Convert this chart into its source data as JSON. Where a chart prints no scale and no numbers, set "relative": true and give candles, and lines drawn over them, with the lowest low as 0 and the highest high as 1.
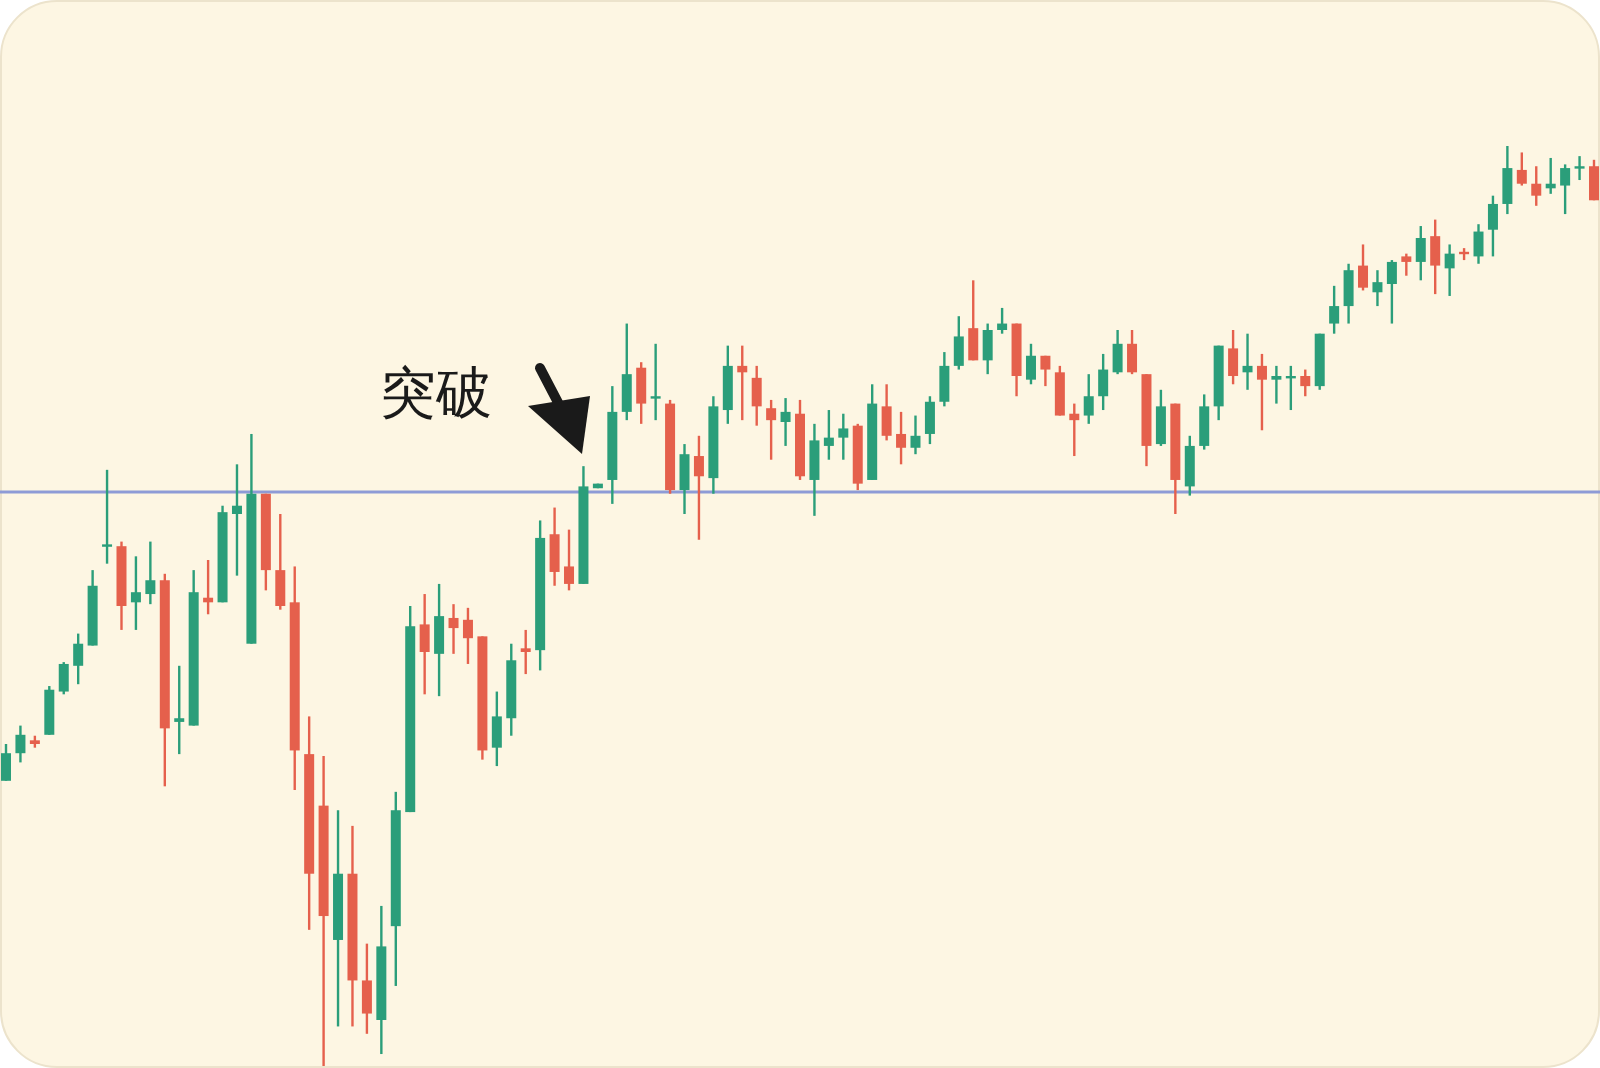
{
  "chart_data": {
    "type": "candlestick",
    "relative": true,
    "categories": [
      null,
      null,
      null,
      null,
      null,
      null,
      null,
      null,
      null,
      null,
      null,
      null,
      null,
      null,
      null,
      null,
      null,
      null,
      null,
      null,
      null,
      null,
      null,
      null,
      null,
      null,
      null,
      null,
      null,
      null,
      null,
      null,
      null,
      null,
      null,
      null,
      null,
      null,
      null,
      null,
      null,
      null,
      null,
      null,
      null,
      null,
      null,
      null,
      null,
      null,
      null,
      null,
      null,
      null,
      null,
      null,
      null,
      null,
      null,
      null,
      null,
      null,
      null,
      null,
      null,
      null,
      null,
      null,
      null,
      null,
      null,
      null,
      null,
      null,
      null,
      null,
      null,
      null,
      null,
      null,
      null,
      null,
      null,
      null,
      null,
      null,
      null,
      null,
      null,
      null,
      null,
      null,
      null,
      null,
      null,
      null,
      null,
      null,
      null,
      null,
      null,
      null,
      null,
      null,
      null,
      null,
      null,
      null,
      null,
      null,
      null
    ],
    "ohlc": [
      [
        0.31,
        0.35,
        0.31,
        0.34
      ],
      [
        0.34,
        0.37,
        0.33,
        0.36
      ],
      [
        0.354,
        0.359,
        0.346,
        0.35
      ],
      [
        0.36,
        0.413,
        0.36,
        0.409
      ],
      [
        0.407,
        0.439,
        0.404,
        0.437
      ],
      [
        0.435,
        0.47,
        0.415,
        0.459
      ],
      [
        0.457,
        0.539,
        0.457,
        0.522
      ],
      [
        0.565,
        0.648,
        0.546,
        0.567
      ],
      [
        0.565,
        0.57,
        0.474,
        0.5
      ],
      [
        0.504,
        0.554,
        0.474,
        0.515
      ],
      [
        0.513,
        0.57,
        0.502,
        0.528
      ],
      [
        0.528,
        0.535,
        0.304,
        0.367
      ],
      [
        0.374,
        0.435,
        0.339,
        0.378
      ],
      [
        0.37,
        0.539,
        0.37,
        0.515
      ],
      [
        0.509,
        0.55,
        0.491,
        0.504
      ],
      [
        0.504,
        0.609,
        0.504,
        0.602
      ],
      [
        0.6,
        0.654,
        0.533,
        0.609
      ],
      [
        0.459,
        0.687,
        0.459,
        0.622
      ],
      [
        0.622,
        0.622,
        0.517,
        0.539
      ],
      [
        0.539,
        0.6,
        0.496,
        0.5
      ],
      [
        0.504,
        0.543,
        0.3,
        0.343
      ],
      [
        0.339,
        0.38,
        0.148,
        0.209
      ],
      [
        0.283,
        0.337,
        0,
        0.163
      ],
      [
        0.137,
        0.278,
        0.043,
        0.209
      ],
      [
        0.209,
        0.261,
        0.043,
        0.093
      ],
      [
        0.093,
        0.133,
        0.035,
        0.057
      ],
      [
        0.05,
        0.174,
        0.013,
        0.13
      ],
      [
        0.152,
        0.298,
        0.087,
        0.278
      ],
      [
        0.276,
        0.5,
        0.276,
        0.478
      ],
      [
        0.48,
        0.513,
        0.404,
        0.45
      ],
      [
        0.448,
        0.524,
        0.402,
        0.489
      ],
      [
        0.487,
        0.502,
        0.448,
        0.476
      ],
      [
        0.485,
        0.498,
        0.437,
        0.465
      ],
      [
        0.467,
        0.467,
        0.333,
        0.343
      ],
      [
        0.346,
        0.407,
        0.326,
        0.38
      ],
      [
        0.378,
        0.459,
        0.359,
        0.441
      ],
      [
        0.454,
        0.474,
        0.426,
        0.45
      ],
      [
        0.452,
        0.593,
        0.43,
        0.574
      ],
      [
        0.578,
        0.607,
        0.522,
        0.537
      ],
      [
        0.543,
        0.583,
        0.517,
        0.524
      ],
      [
        0.524,
        0.652,
        0.524,
        0.63
      ],
      [
        0.628,
        0.633,
        0.628,
        0.633
      ],
      [
        0.637,
        0.739,
        0.611,
        0.711
      ],
      [
        0.711,
        0.807,
        0.702,
        0.752
      ],
      [
        0.759,
        0.765,
        0.698,
        0.72
      ],
      [
        0.726,
        0.785,
        0.702,
        0.728
      ],
      [
        0.72,
        0.724,
        0.622,
        0.626
      ],
      [
        0.626,
        0.676,
        0.6,
        0.665
      ],
      [
        0.663,
        0.685,
        0.572,
        0.641
      ],
      [
        0.639,
        0.728,
        0.622,
        0.717
      ],
      [
        0.713,
        0.783,
        0.698,
        0.761
      ],
      [
        0.761,
        0.783,
        0.702,
        0.754
      ],
      [
        0.748,
        0.761,
        0.696,
        0.717
      ],
      [
        0.715,
        0.724,
        0.659,
        0.702
      ],
      [
        0.7,
        0.726,
        0.674,
        0.711
      ],
      [
        0.709,
        0.724,
        0.637,
        0.641
      ],
      [
        0.637,
        0.698,
        0.598,
        0.68
      ],
      [
        0.674,
        0.713,
        0.659,
        0.683
      ],
      [
        0.683,
        0.709,
        0.659,
        0.693
      ],
      [
        0.696,
        0.698,
        0.626,
        0.633
      ],
      [
        0.637,
        0.741,
        0.637,
        0.72
      ],
      [
        0.717,
        0.741,
        0.68,
        0.685
      ],
      [
        0.687,
        0.711,
        0.654,
        0.672
      ],
      [
        0.672,
        0.707,
        0.665,
        0.685
      ],
      [
        0.687,
        0.728,
        0.676,
        0.722
      ],
      [
        0.722,
        0.776,
        0.717,
        0.761
      ],
      [
        0.761,
        0.815,
        0.757,
        0.793
      ],
      [
        0.802,
        0.854,
        0.767,
        0.767
      ],
      [
        0.767,
        0.807,
        0.752,
        0.8
      ],
      [
        0.8,
        0.824,
        0.796,
        0.807
      ],
      [
        0.807,
        0.807,
        0.728,
        0.75
      ],
      [
        0.746,
        0.785,
        0.741,
        0.772
      ],
      [
        0.772,
        0.772,
        0.739,
        0.757
      ],
      [
        0.754,
        0.761,
        0.707,
        0.707
      ],
      [
        0.709,
        0.72,
        0.663,
        0.702
      ],
      [
        0.707,
        0.752,
        0.698,
        0.728
      ],
      [
        0.728,
        0.774,
        0.713,
        0.757
      ],
      [
        0.754,
        0.8,
        0.752,
        0.785
      ],
      [
        0.785,
        0.8,
        0.752,
        0.754
      ],
      [
        0.752,
        0.752,
        0.652,
        0.674
      ],
      [
        0.676,
        0.735,
        0.674,
        0.717
      ],
      [
        0.72,
        0.72,
        0.6,
        0.637
      ],
      [
        0.63,
        0.685,
        0.62,
        0.674
      ],
      [
        0.674,
        0.73,
        0.67,
        0.717
      ],
      [
        0.717,
        0.783,
        0.702,
        0.783
      ],
      [
        0.78,
        0.8,
        0.741,
        0.75
      ],
      [
        0.754,
        0.796,
        0.735,
        0.761
      ],
      [
        0.761,
        0.774,
        0.691,
        0.746
      ],
      [
        0.746,
        0.761,
        0.72,
        0.75
      ],
      [
        0.748,
        0.761,
        0.713,
        0.75
      ],
      [
        0.75,
        0.757,
        0.728,
        0.739
      ],
      [
        0.739,
        0.796,
        0.735,
        0.796
      ],
      [
        0.807,
        0.848,
        0.796,
        0.826
      ],
      [
        0.826,
        0.872,
        0.807,
        0.865
      ],
      [
        0.87,
        0.893,
        0.843,
        0.846
      ],
      [
        0.841,
        0.865,
        0.826,
        0.852
      ],
      [
        0.85,
        0.876,
        0.807,
        0.874
      ],
      [
        0.88,
        0.883,
        0.859,
        0.874
      ],
      [
        0.874,
        0.913,
        0.854,
        0.9
      ],
      [
        0.902,
        0.92,
        0.839,
        0.87
      ],
      [
        0.867,
        0.893,
        0.837,
        0.883
      ],
      [
        0.885,
        0.889,
        0.876,
        0.883
      ],
      [
        0.88,
        0.915,
        0.872,
        0.907
      ],
      [
        0.909,
        0.946,
        0.88,
        0.937
      ],
      [
        0.937,
        1,
        0.926,
        0.976
      ],
      [
        0.974,
        0.993,
        0.957,
        0.959
      ],
      [
        0.959,
        0.978,
        0.935,
        0.946
      ],
      [
        0.954,
        0.987,
        0.948,
        0.959
      ],
      [
        0.957,
        0.98,
        0.926,
        0.976
      ],
      [
        0.976,
        0.989,
        0.963,
        0.978
      ],
      [
        0.978,
        0.985,
        0.941,
        0.941
      ]
    ],
    "ref_lines": [
      {
        "axis": "y",
        "value": 0.624,
        "color": "#8e9bd6"
      }
    ],
    "annotations": [
      "突破"
    ]
  }
}
